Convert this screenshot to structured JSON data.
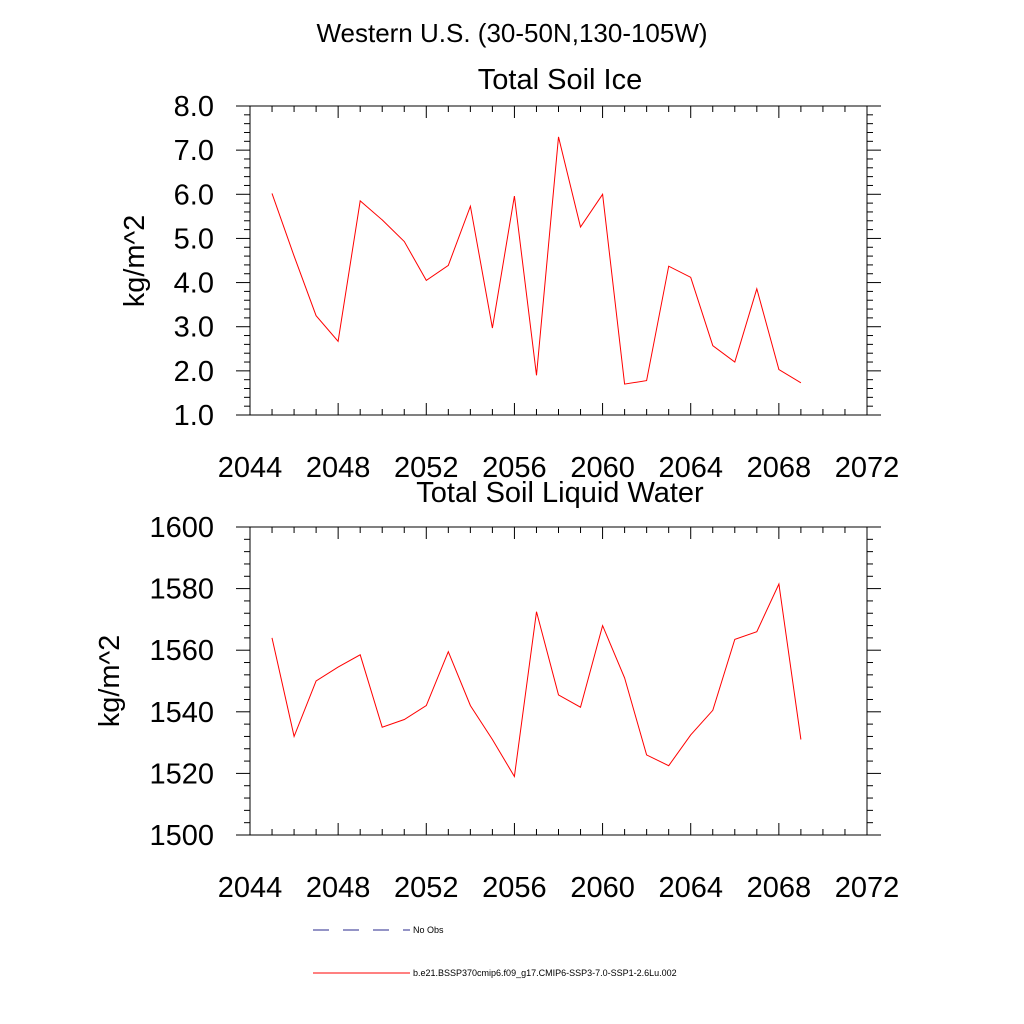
{
  "figure": {
    "title": "Western U.S. (30-50N,130-105W)"
  },
  "chart_data": [
    {
      "type": "line",
      "title": "Total Soil Ice",
      "xlabel": "",
      "ylabel": "kg/m^2",
      "xlim": [
        2044,
        2072
      ],
      "ylim": [
        1.0,
        8.0
      ],
      "x_ticks": [
        "2044",
        "2048",
        "2052",
        "2056",
        "2060",
        "2064",
        "2068",
        "2072"
      ],
      "y_ticks": [
        "1.0",
        "2.0",
        "3.0",
        "4.0",
        "5.0",
        "6.0",
        "7.0",
        "8.0"
      ],
      "x_tick_values": [
        2044,
        2048,
        2052,
        2056,
        2060,
        2064,
        2068,
        2072
      ],
      "y_tick_values": [
        1,
        2,
        3,
        4,
        5,
        6,
        7,
        8
      ],
      "x_minor_step": 1,
      "y_minor_step": 0.2,
      "grid": false,
      "series": [
        {
          "name": "b.e21.BSSP370cmip6.f09_g17.CMIP6-SSP3-7.0-SSP1-2.6Lu.002",
          "color": "#ff0000",
          "x": [
            2045,
            2046,
            2047,
            2048,
            2049,
            2050,
            2051,
            2052,
            2053,
            2054,
            2055,
            2056,
            2057,
            2058,
            2059,
            2060,
            2061,
            2062,
            2063,
            2064,
            2065,
            2066,
            2067,
            2068,
            2069
          ],
          "values": [
            6.02,
            4.6,
            3.25,
            2.67,
            5.85,
            5.42,
            4.93,
            4.05,
            4.39,
            5.73,
            2.97,
            5.96,
            1.9,
            7.3,
            5.26,
            6.0,
            1.7,
            1.78,
            4.37,
            4.12,
            2.57,
            2.2,
            3.86,
            2.03,
            1.73
          ]
        }
      ]
    },
    {
      "type": "line",
      "title": "Total Soil Liquid Water",
      "xlabel": "",
      "ylabel": "kg/m^2",
      "xlim": [
        2044,
        2072
      ],
      "ylim": [
        1500,
        1600
      ],
      "x_ticks": [
        "2044",
        "2048",
        "2052",
        "2056",
        "2060",
        "2064",
        "2068",
        "2072"
      ],
      "y_ticks": [
        "1500",
        "1520",
        "1540",
        "1560",
        "1580",
        "1600"
      ],
      "x_tick_values": [
        2044,
        2048,
        2052,
        2056,
        2060,
        2064,
        2068,
        2072
      ],
      "y_tick_values": [
        1500,
        1520,
        1540,
        1560,
        1580,
        1600
      ],
      "x_minor_step": 1,
      "y_minor_step": 4,
      "grid": false,
      "series": [
        {
          "name": "b.e21.BSSP370cmip6.f09_g17.CMIP6-SSP3-7.0-SSP1-2.6Lu.002",
          "color": "#ff0000",
          "x": [
            2045,
            2046,
            2047,
            2048,
            2049,
            2050,
            2051,
            2052,
            2053,
            2054,
            2055,
            2056,
            2057,
            2058,
            2059,
            2060,
            2061,
            2062,
            2063,
            2064,
            2065,
            2066,
            2067,
            2068,
            2069
          ],
          "values": [
            1564,
            1532,
            1550,
            1554.5,
            1558.5,
            1535,
            1537.5,
            1542,
            1559.5,
            1542,
            1531,
            1519,
            1572.5,
            1545.5,
            1541.5,
            1568,
            1551,
            1526,
            1522.5,
            1532.5,
            1540.5,
            1563.5,
            1566,
            1581.5,
            1531
          ]
        }
      ]
    }
  ],
  "legend": {
    "placement": "bottom",
    "entries": [
      {
        "label": "No Obs",
        "color": "#2a2a8c",
        "style": "dashed"
      },
      {
        "label": "b.e21.BSSP370cmip6.f09_g17.CMIP6-SSP3-7.0-SSP1-2.6Lu.002",
        "color": "#ff0000",
        "style": "solid"
      }
    ]
  }
}
